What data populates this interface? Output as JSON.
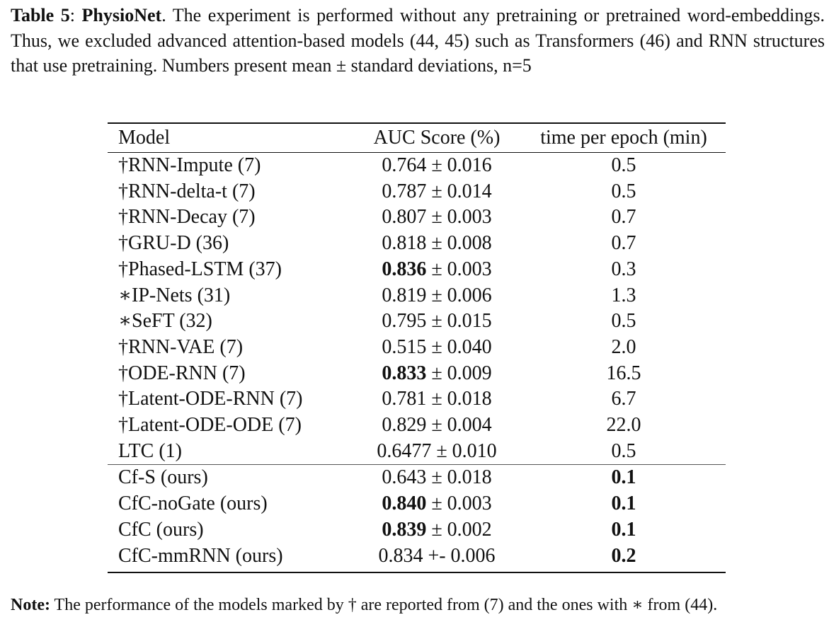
{
  "caption": {
    "label": "Table 5",
    "after_label": ": ",
    "name": "PhysioNet",
    "text": ". The experiment is performed without any pretraining or pretrained word-embeddings. Thus, we excluded advanced attention-based models (44, 45) such as Transformers (46) and RNN structures that use pretraining. Numbers present mean ± standard deviations, n=5"
  },
  "table": {
    "header": [
      "Model",
      "AUC Score (%)",
      "time per epoch (min)"
    ],
    "rows": [
      {
        "model": "†RNN-Impute (7)",
        "auc": [
          "0.764",
          "± 0.016"
        ],
        "time": "0.5",
        "bold": []
      },
      {
        "model": "†RNN-delta-t (7)",
        "auc": [
          "0.787",
          "± 0.014"
        ],
        "time": "0.5",
        "bold": []
      },
      {
        "model": "†RNN-Decay (7)",
        "auc": [
          "0.807",
          "± 0.003"
        ],
        "time": "0.7",
        "bold": []
      },
      {
        "model": "†GRU-D (36)",
        "auc": [
          "0.818",
          "± 0.008"
        ],
        "time": "0.7",
        "bold": []
      },
      {
        "model": "†Phased-LSTM (37)",
        "auc": [
          "0.836",
          "± 0.003"
        ],
        "time": "0.3",
        "bold": [
          "auc"
        ]
      },
      {
        "model": "∗IP-Nets (31)",
        "auc": [
          "0.819",
          "± 0.006"
        ],
        "time": "1.3",
        "bold": []
      },
      {
        "model": "∗SeFT (32)",
        "auc": [
          "0.795",
          "± 0.015"
        ],
        "time": "0.5",
        "bold": []
      },
      {
        "model": "†RNN-VAE (7)",
        "auc": [
          "0.515",
          "± 0.040"
        ],
        "time": "2.0",
        "bold": []
      },
      {
        "model": "†ODE-RNN (7)",
        "auc": [
          "0.833",
          "± 0.009"
        ],
        "time": "16.5",
        "bold": [
          "auc"
        ]
      },
      {
        "model": "†Latent-ODE-RNN (7)",
        "auc": [
          "0.781",
          "± 0.018"
        ],
        "time": "6.7",
        "bold": []
      },
      {
        "model": "†Latent-ODE-ODE (7)",
        "auc": [
          "0.829",
          "± 0.004"
        ],
        "time": "22.0",
        "bold": []
      },
      {
        "model": "LTC (1)",
        "auc": [
          "0.6477",
          "± 0.010"
        ],
        "time": "0.5",
        "bold": []
      },
      {
        "model": "Cf-S (ours)",
        "auc": [
          "0.643",
          "± 0.018"
        ],
        "time": "0.1",
        "bold": [
          "time"
        ]
      },
      {
        "model": "CfC-noGate (ours)",
        "auc": [
          "0.840",
          "± 0.003"
        ],
        "time": "0.1",
        "bold": [
          "auc",
          "time"
        ]
      },
      {
        "model": "CfC (ours)",
        "auc": [
          "0.839",
          "± 0.002"
        ],
        "time": "0.1",
        "bold": [
          "auc",
          "time"
        ]
      },
      {
        "model": "CfC-mmRNN (ours)",
        "auc": [
          "0.834",
          "+- 0.006"
        ],
        "time": "0.2",
        "bold": [
          "time"
        ]
      }
    ],
    "group_break_before": 12
  },
  "note": {
    "label": "Note:",
    "text": "The performance of the models marked by † are reported from (7) and the ones with ∗ from (44)."
  }
}
